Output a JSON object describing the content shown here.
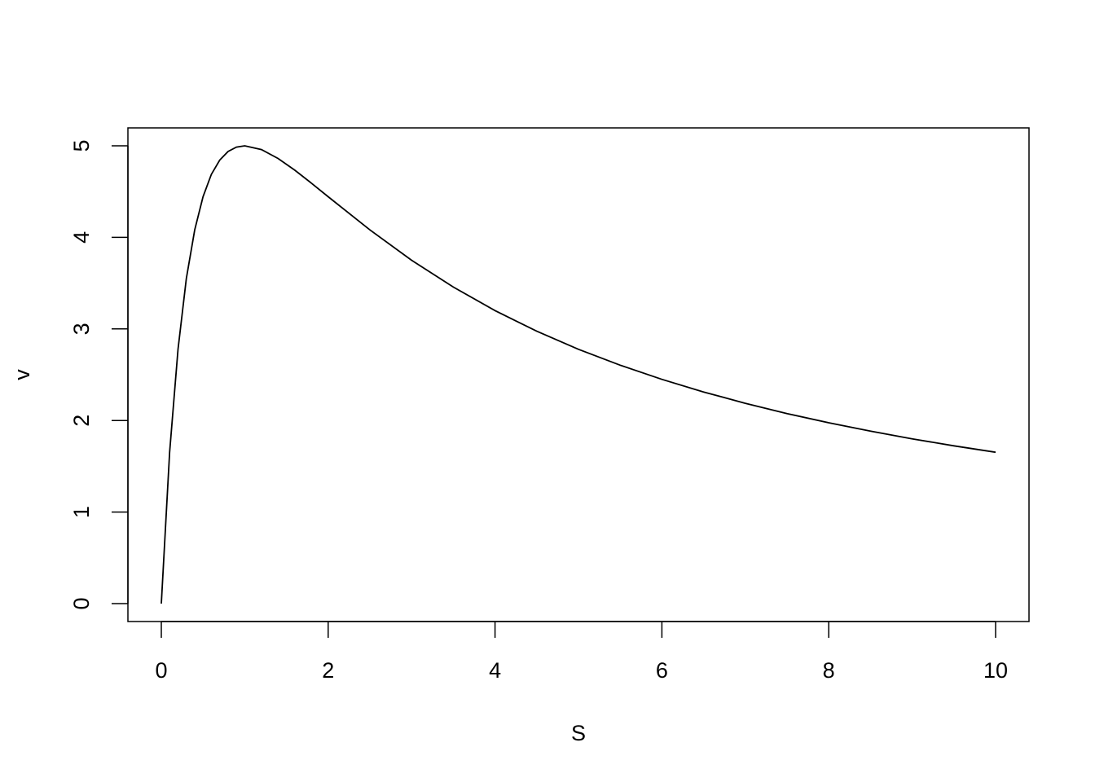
{
  "chart_data": {
    "type": "line",
    "title": "",
    "xlabel": "S",
    "ylabel": "v",
    "xlim": [
      0,
      10
    ],
    "ylim": [
      0,
      5
    ],
    "grid": false,
    "xticks": [
      "0",
      "2",
      "4",
      "6",
      "8",
      "10"
    ],
    "yticks": [
      "0",
      "1",
      "2",
      "3",
      "4",
      "5"
    ],
    "line_color": "#000000",
    "series": [
      {
        "x": [
          0,
          0.1,
          0.2,
          0.3,
          0.4,
          0.5,
          0.6,
          0.7,
          0.8,
          0.9,
          1.0,
          1.2,
          1.4,
          1.6,
          1.8,
          2.0,
          2.5,
          3,
          3.5,
          4,
          4.5,
          5,
          5.5,
          6,
          6.5,
          7,
          7.5,
          8,
          8.5,
          9,
          9.5,
          10
        ],
        "y": [
          0,
          1.653,
          2.778,
          3.55,
          4.082,
          4.444,
          4.688,
          4.844,
          4.938,
          4.986,
          5.0,
          4.959,
          4.861,
          4.734,
          4.592,
          4.444,
          4.082,
          3.75,
          3.457,
          3.2,
          2.975,
          2.778,
          2.604,
          2.449,
          2.311,
          2.188,
          2.076,
          1.975,
          1.884,
          1.8,
          1.723,
          1.653
        ]
      }
    ]
  }
}
